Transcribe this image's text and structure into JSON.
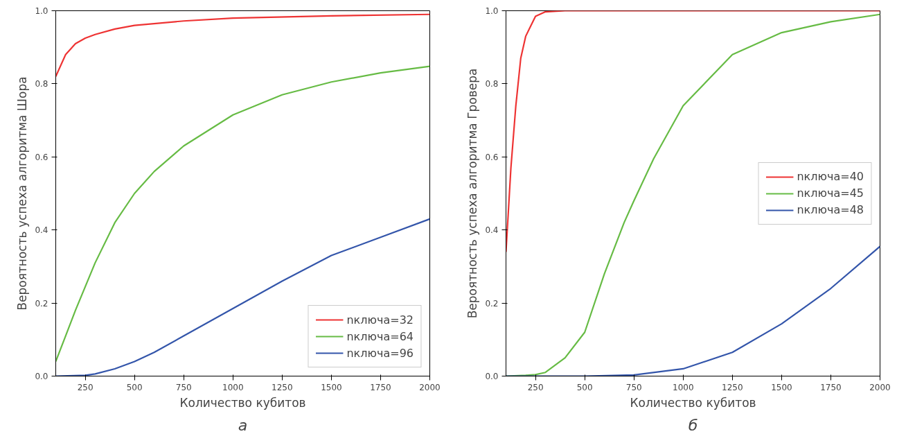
{
  "chart_data": [
    {
      "type": "line",
      "xlabel": "Количество кубитов",
      "ylabel": "Вероятность успеха алгоритма Шора",
      "annotations": [
        "а"
      ],
      "xlim": [
        100,
        2000
      ],
      "ylim": [
        0,
        1
      ],
      "xticks": [
        250,
        500,
        750,
        1000,
        1250,
        1500,
        1750,
        2000
      ],
      "yticks": [
        {
          "value": 0,
          "label": "0.0"
        },
        {
          "value": 0.2,
          "label": "0.2"
        },
        {
          "value": 0.4,
          "label": "0.4"
        },
        {
          "value": 0.6,
          "label": "0.6"
        },
        {
          "value": 0.8,
          "label": "0.8"
        },
        {
          "value": 1,
          "label": "1.0"
        }
      ],
      "grid": false,
      "legend": "bottom right",
      "line_style": "solid",
      "marker": "none",
      "series": [
        {
          "name": "nключа=32",
          "color": "#ee3333",
          "x": [
            100,
            150,
            200,
            250,
            300,
            400,
            500,
            750,
            1000,
            1500,
            2000
          ],
          "values": [
            0.82,
            0.88,
            0.91,
            0.925,
            0.935,
            0.95,
            0.96,
            0.972,
            0.98,
            0.986,
            0.99
          ]
        },
        {
          "name": "nключа=64",
          "color": "#66bb44",
          "x": [
            100,
            150,
            200,
            250,
            300,
            400,
            500,
            600,
            750,
            1000,
            1250,
            1500,
            1750,
            2000
          ],
          "values": [
            0.04,
            0.11,
            0.18,
            0.245,
            0.31,
            0.42,
            0.5,
            0.56,
            0.63,
            0.715,
            0.77,
            0.805,
            0.83,
            0.848
          ]
        },
        {
          "name": "nключа=96",
          "color": "#3355aa",
          "x": [
            100,
            250,
            300,
            400,
            500,
            600,
            750,
            1000,
            1250,
            1500,
            1750,
            2000
          ],
          "values": [
            0,
            0.002,
            0.006,
            0.02,
            0.04,
            0.065,
            0.11,
            0.185,
            0.26,
            0.33,
            0.38,
            0.43
          ]
        }
      ]
    },
    {
      "type": "line",
      "xlabel": "Количество кубитов",
      "ylabel": "Вероятность успеха алгоритма Гровера",
      "annotations": [
        "б"
      ],
      "xlim": [
        100,
        2000
      ],
      "ylim": [
        0,
        1
      ],
      "xticks": [
        250,
        500,
        750,
        1000,
        1250,
        1500,
        1750,
        2000
      ],
      "yticks": [
        {
          "value": 0,
          "label": "0.0"
        },
        {
          "value": 0.2,
          "label": "0.2"
        },
        {
          "value": 0.4,
          "label": "0.4"
        },
        {
          "value": 0.6,
          "label": "0.6"
        },
        {
          "value": 0.8,
          "label": "0.8"
        },
        {
          "value": 1,
          "label": "1.0"
        }
      ],
      "grid": false,
      "legend": "right",
      "line_style": "solid",
      "marker": "none",
      "series": [
        {
          "name": "nключа=40",
          "color": "#ee3333",
          "x": [
            100,
            125,
            150,
            175,
            200,
            250,
            300,
            400,
            1000,
            2000
          ],
          "values": [
            0.34,
            0.57,
            0.74,
            0.87,
            0.93,
            0.985,
            0.997,
            1,
            1,
            1
          ]
        },
        {
          "name": "nключа=45",
          "color": "#66bb44",
          "x": [
            100,
            200,
            250,
            300,
            400,
            500,
            600,
            700,
            750,
            850,
            1000,
            1250,
            1500,
            1750,
            2000
          ],
          "values": [
            0,
            0.002,
            0.004,
            0.01,
            0.05,
            0.12,
            0.28,
            0.42,
            0.48,
            0.595,
            0.74,
            0.88,
            0.94,
            0.97,
            0.99
          ]
        },
        {
          "name": "nключа=48",
          "color": "#3355aa",
          "x": [
            100,
            500,
            750,
            1000,
            1250,
            1500,
            1750,
            2000
          ],
          "values": [
            0,
            0,
            0.003,
            0.02,
            0.065,
            0.143,
            0.24,
            0.355
          ]
        }
      ]
    }
  ]
}
